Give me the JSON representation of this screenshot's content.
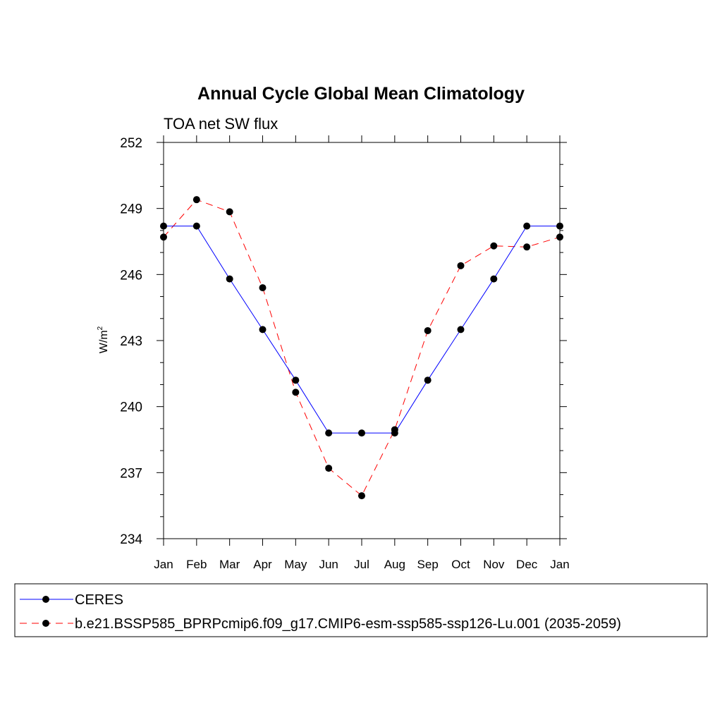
{
  "chart_data": {
    "type": "line",
    "title": "Annual Cycle Global Mean Climatology",
    "subtitle": "TOA net SW flux",
    "ylabel": "W/m",
    "ylabel_sup": "2",
    "xlabel": "",
    "categories": [
      "Jan",
      "Feb",
      "Mar",
      "Apr",
      "May",
      "Jun",
      "Jul",
      "Aug",
      "Sep",
      "Oct",
      "Nov",
      "Dec",
      "Jan"
    ],
    "ylim": [
      234,
      252
    ],
    "yticks": [
      234,
      237,
      240,
      243,
      246,
      249,
      252
    ],
    "grid": false,
    "legend_position": "bottom",
    "series": [
      {
        "name": "CERES",
        "color": "#0000ff",
        "dash": "solid",
        "values": [
          248.2,
          248.2,
          245.8,
          243.5,
          241.2,
          238.8,
          238.8,
          238.8,
          241.2,
          243.5,
          245.8,
          248.2,
          248.2
        ]
      },
      {
        "name": "b.e21.BSSP585_BPRPcmip6.f09_g17.CMIP6-esm-ssp585-ssp126-Lu.001 (2035-2059)",
        "color": "#ff0000",
        "dash": "dashed",
        "values": [
          247.7,
          249.4,
          248.85,
          245.4,
          240.65,
          237.2,
          235.95,
          238.95,
          243.45,
          246.4,
          247.3,
          247.25,
          247.7
        ]
      }
    ]
  }
}
